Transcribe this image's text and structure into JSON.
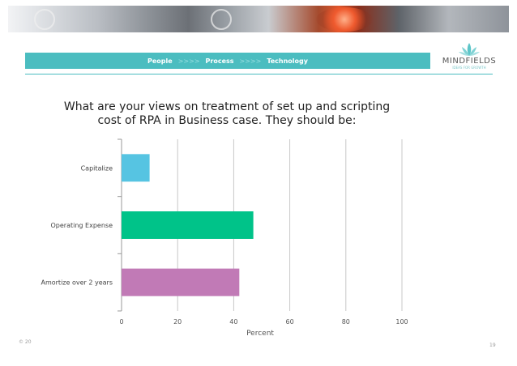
{
  "header": {
    "nav": [
      "People",
      ">>>>",
      "Process",
      ">>>>",
      "Technology"
    ],
    "logo": {
      "name": "MINDFIELDS",
      "tagline": "IDEAS FOR GROWTH"
    }
  },
  "chart_data": {
    "type": "bar",
    "orientation": "horizontal",
    "title_lines": [
      "What are your views on treatment of set up and scripting",
      "cost of RPA in Business case. They should be:"
    ],
    "categories": [
      "Capitalize",
      "Operating Expense",
      "Amortize over 2 years"
    ],
    "values": [
      10,
      47,
      42
    ],
    "colors": [
      "#56c4e2",
      "#00c389",
      "#c17ab6"
    ],
    "xlabel": "Percent",
    "xlim": [
      0,
      100
    ],
    "xticks": [
      0,
      20,
      40,
      60,
      80,
      100
    ],
    "grid": true
  },
  "footer": {
    "left": "© 20",
    "page_number": "19"
  }
}
